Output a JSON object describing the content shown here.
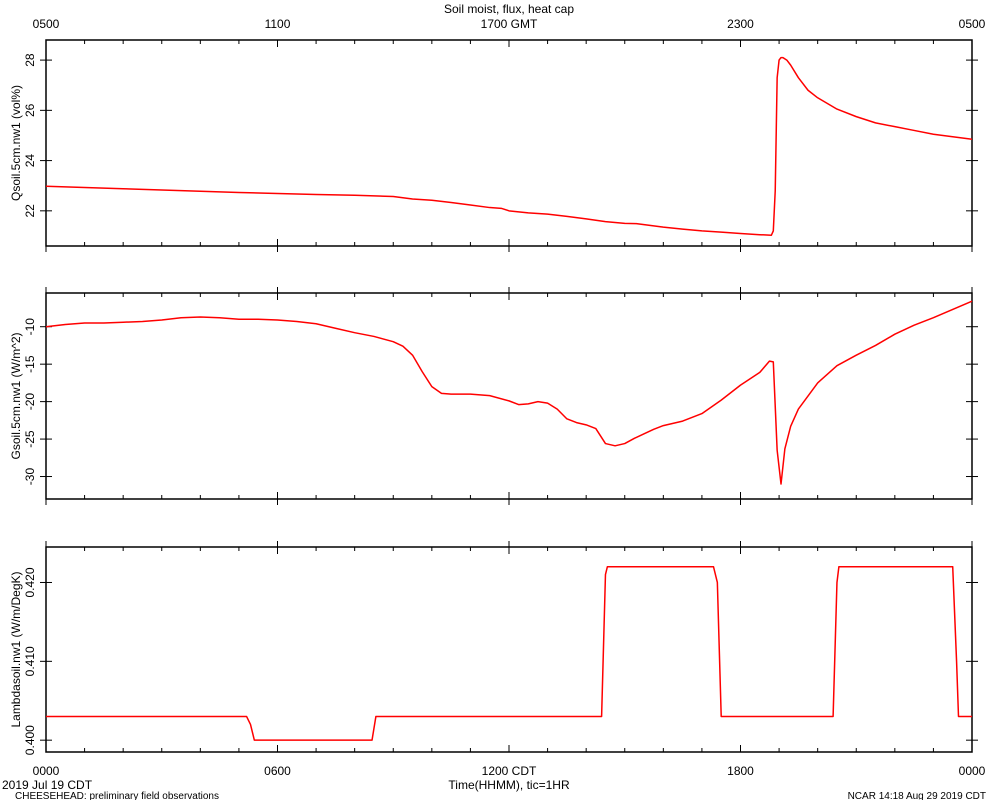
{
  "chart_data": {
    "type": "line",
    "title": "Soil moist, flux, heat cap",
    "top_axis_ticks": [
      "0500",
      "1100",
      "1700 GMT",
      "2300",
      "0500"
    ],
    "bottom_axis_ticks": [
      "0000",
      "0600",
      "1200 CDT",
      "1800",
      "0000"
    ],
    "xlabel": "Time(HHMM), tic=1HR",
    "date_label": "2019 Jul 19 CDT",
    "footer_left": "CHEESEHEAD: preliminary field observations",
    "footer_right": "NCAR 14:18 Aug 29 2019 CDT",
    "x_unit": "hours since 0000 CDT",
    "xlim": [
      0,
      24
    ],
    "line_color": "#ff0000",
    "panels": [
      {
        "name": "qsoil",
        "ylabel": "Qsoil.5cm.nw1 (vol%)",
        "ylim": [
          20.6,
          28.8
        ],
        "yticks": [
          22,
          24,
          26,
          28
        ],
        "ytick_labels": [
          "22",
          "24",
          "26",
          "28"
        ],
        "series": [
          {
            "x": [
              0,
              1,
              2,
              3,
              4,
              5,
              6,
              7,
              8,
              9,
              9.5,
              10,
              10.5,
              11,
              11.5,
              11.8,
              12,
              12.5,
              13,
              13.5,
              14,
              14.5,
              15,
              15.3,
              15.5,
              16,
              16.5,
              17,
              17.5,
              18,
              18.5,
              18.8,
              18.85,
              18.9,
              18.95,
              19,
              19.05,
              19.1,
              19.2,
              19.3,
              19.5,
              19.75,
              20,
              20.5,
              21,
              21.5,
              22,
              22.5,
              23,
              23.5,
              24
            ],
            "y": [
              22.98,
              22.93,
              22.88,
              22.83,
              22.78,
              22.73,
              22.69,
              22.65,
              22.62,
              22.57,
              22.47,
              22.42,
              22.33,
              22.23,
              22.13,
              22.1,
              22.0,
              21.92,
              21.87,
              21.78,
              21.68,
              21.57,
              21.5,
              21.49,
              21.45,
              21.35,
              21.27,
              21.2,
              21.15,
              21.1,
              21.05,
              21.03,
              21.2,
              22.8,
              27.3,
              28.0,
              28.1,
              28.1,
              28.0,
              27.8,
              27.3,
              26.8,
              26.5,
              26.05,
              25.75,
              25.5,
              25.35,
              25.2,
              25.05,
              24.95,
              24.85
            ]
          }
        ]
      },
      {
        "name": "gsoil",
        "ylabel": "Gsoil.5cm.nw1 (W/m^2)",
        "ylim": [
          -33,
          -5.5
        ],
        "yticks": [
          -30,
          -25,
          -20,
          -15,
          -10
        ],
        "ytick_labels": [
          "-30",
          "-25",
          "-20",
          "-15",
          "-10"
        ],
        "series": [
          {
            "x": [
              0,
              0.5,
              1,
              1.5,
              2,
              2.5,
              3,
              3.5,
              4,
              4.5,
              5,
              5.5,
              6,
              6.5,
              7,
              7.5,
              8,
              8.5,
              9,
              9.25,
              9.5,
              9.75,
              10,
              10.25,
              10.5,
              10.75,
              11,
              11.5,
              12,
              12.25,
              12.5,
              12.75,
              13,
              13.25,
              13.5,
              13.75,
              14,
              14.25,
              14.5,
              14.75,
              15,
              15.25,
              15.5,
              15.75,
              16,
              16.5,
              17,
              17.5,
              18,
              18.5,
              18.75,
              18.85,
              18.95,
              19.05,
              19.15,
              19.3,
              19.5,
              20,
              20.5,
              21,
              21.5,
              22,
              22.5,
              23,
              23.5,
              24
            ],
            "y": [
              -10.0,
              -9.7,
              -9.5,
              -9.5,
              -9.4,
              -9.3,
              -9.1,
              -8.8,
              -8.7,
              -8.8,
              -9.0,
              -9.0,
              -9.1,
              -9.3,
              -9.6,
              -10.2,
              -10.8,
              -11.3,
              -12.0,
              -12.6,
              -13.8,
              -16.0,
              -18.0,
              -18.9,
              -19.0,
              -19.0,
              -19.0,
              -19.2,
              -19.9,
              -20.4,
              -20.3,
              -20.0,
              -20.2,
              -21.0,
              -22.3,
              -22.8,
              -23.1,
              -23.6,
              -25.6,
              -25.9,
              -25.6,
              -24.9,
              -24.3,
              -23.7,
              -23.2,
              -22.6,
              -21.6,
              -19.8,
              -17.8,
              -16.1,
              -14.6,
              -14.7,
              -26.5,
              -31.0,
              -26.3,
              -23.3,
              -21.0,
              -17.5,
              -15.2,
              -13.8,
              -12.5,
              -11.0,
              -9.8,
              -8.8,
              -7.7,
              -6.6
            ]
          }
        ]
      },
      {
        "name": "lambda",
        "ylabel": "Lambdasoil.nw1 (W/m/DegK)",
        "ylim": [
          0.3985,
          0.4245
        ],
        "yticks": [
          0.4,
          0.41,
          0.42
        ],
        "ytick_labels": [
          "0.400",
          "0.410",
          "0.420"
        ],
        "series": [
          {
            "x": [
              0,
              5.2,
              5.3,
              5.4,
              8.45,
              8.55,
              14.4,
              14.5,
              14.55,
              17.3,
              17.4,
              17.5,
              20.4,
              20.5,
              20.55,
              23.5,
              23.6,
              23.65,
              24
            ],
            "y": [
              0.403,
              0.403,
              0.402,
              0.4,
              0.4,
              0.403,
              0.403,
              0.421,
              0.422,
              0.422,
              0.42,
              0.403,
              0.403,
              0.42,
              0.422,
              0.422,
              0.41,
              0.403,
              0.403
            ]
          }
        ]
      }
    ]
  }
}
